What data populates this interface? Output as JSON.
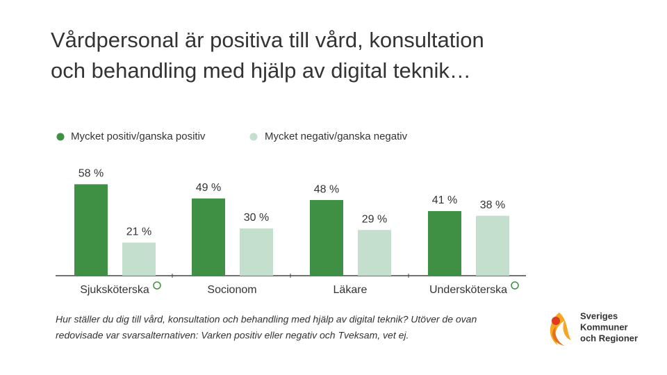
{
  "title": [
    "Vårdpersonal är positiva till vård, konsultation",
    "och behandling med hjälp av digital teknik…"
  ],
  "chart_data": {
    "type": "bar",
    "categories": [
      "Sjuksköterska",
      "Socionom",
      "Läkare",
      "Undersköterska"
    ],
    "series": [
      {
        "name": "Mycket positiv/ganska positiv",
        "color": "#3f8f45",
        "values": [
          58,
          49,
          48,
          41
        ],
        "value_labels": [
          "58 %",
          "49 %",
          "48 %",
          "41 %"
        ]
      },
      {
        "name": "Mycket negativ/ganska negativ",
        "color": "#c5dfcf",
        "values": [
          21,
          30,
          29,
          38
        ],
        "value_labels": [
          "21 %",
          "30 %",
          "29 %",
          "38 %"
        ]
      }
    ],
    "footnote": [
      "Hur ställer du dig till vård, konsultation och behandling med hjälp av digital teknik? Utöver de ovan",
      "redovisade var svarsalternativen: Varken positiv eller negativ och Tveksam, vet ej."
    ]
  },
  "logo": [
    "Sveriges",
    "Kommuner",
    "och Regioner"
  ]
}
